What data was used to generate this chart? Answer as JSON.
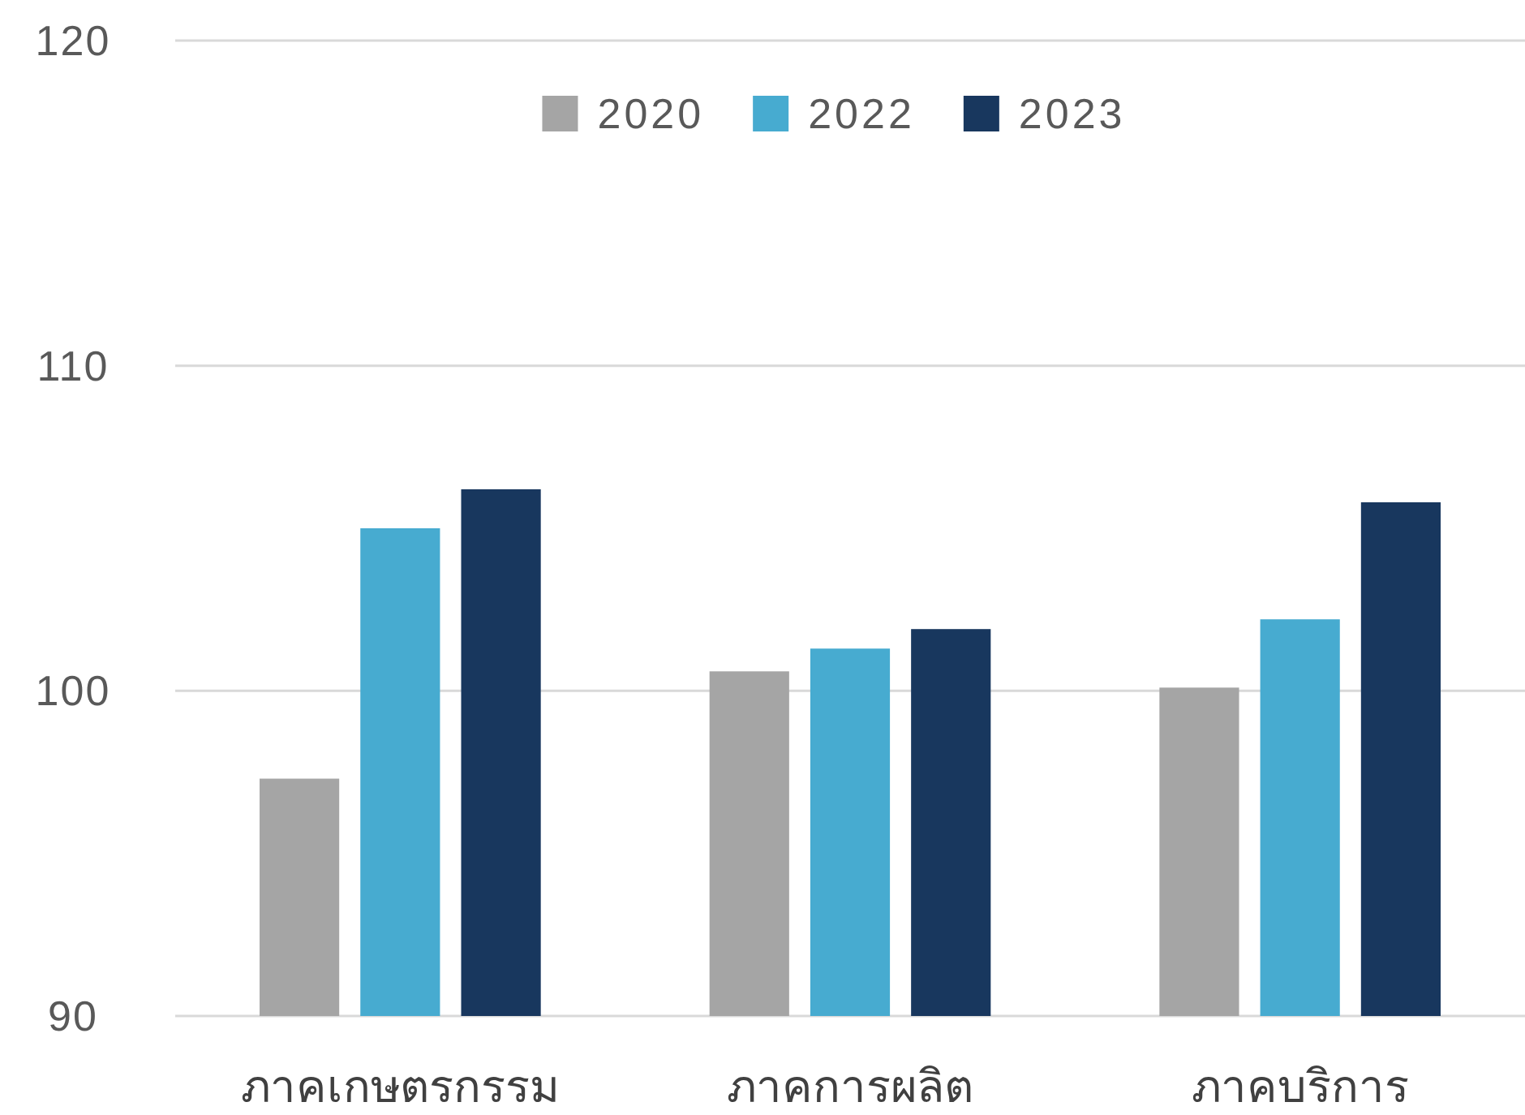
{
  "chart_data": {
    "type": "bar",
    "categories": [
      "ภาคเกษตรกรรม",
      "ภาคการผลิต",
      "ภาคบริการ"
    ],
    "series": [
      {
        "name": "2020",
        "color": "#a5a5a5",
        "values": [
          97.3,
          100.6,
          100.1
        ]
      },
      {
        "name": "2022",
        "color": "#47abd0",
        "values": [
          105.0,
          101.3,
          102.2
        ]
      },
      {
        "name": "2023",
        "color": "#18375e",
        "values": [
          106.2,
          101.9,
          105.8
        ]
      }
    ],
    "ylim": [
      90,
      120
    ],
    "yticks": [
      90,
      100,
      110,
      120
    ],
    "grid": "y",
    "legend": "top"
  }
}
